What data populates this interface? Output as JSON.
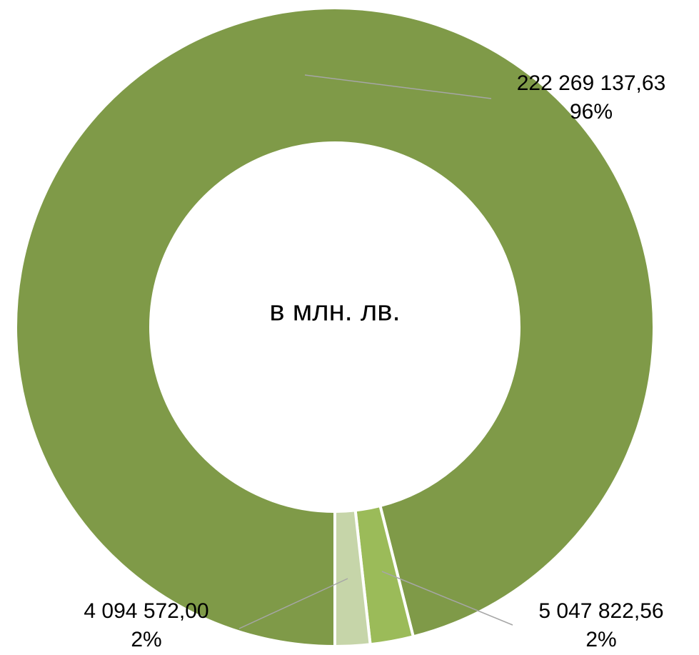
{
  "chart_data": {
    "type": "donut",
    "center_label": "в млн. лв.",
    "categories": [
      null,
      null,
      null
    ],
    "values": [
      222269137.63,
      5047822.56,
      4094572.0
    ],
    "value_labels": [
      "222 269 137,63",
      "5 047 822,56",
      "4 094 572,00"
    ],
    "percent_labels": [
      "96%",
      "2%",
      "2%"
    ],
    "colors": [
      "#7f9a48",
      "#9bbb59",
      "#c6d5a9"
    ]
  }
}
